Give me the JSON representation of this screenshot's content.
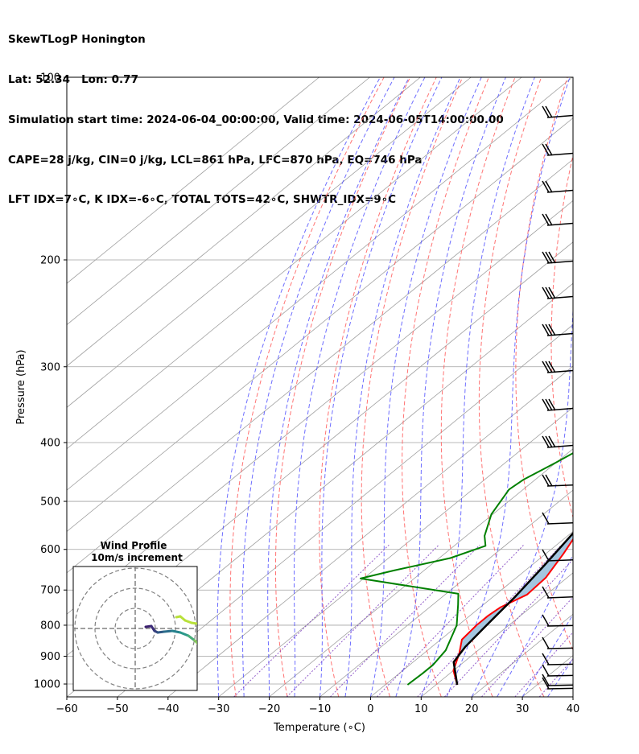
{
  "header": {
    "line1": "SkewTLogP Honington",
    "line2": "Lat: 52.34   Lon: 0.77",
    "line3": "Simulation start time: 2024-06-04_00:00:00, Valid time: 2024-06-05T14:00:00.00",
    "line4": "CAPE=28 j/kg, CIN=0 j/kg, LCL=861 hPa, LFC=870 hPa, EQ=746 hPa",
    "line5": "LFT IDX=7∘C, K IDX=-6∘C, TOTAL TOTS=42∘C, SHWTR_IDX=9∘C"
  },
  "chart_data": {
    "type": "line",
    "xlabel": "Temperature (∘C)",
    "ylabel": "Pressure (hPa)",
    "xlim": [
      -60,
      40
    ],
    "ylim": [
      1050,
      100
    ],
    "y_scale": "log",
    "x_ticks": [
      "−60",
      "−50",
      "−40",
      "−30",
      "−20",
      "−10",
      "0",
      "10",
      "20",
      "30",
      "40"
    ],
    "y_ticks": [
      100,
      200,
      300,
      400,
      500,
      600,
      700,
      800,
      900,
      1000
    ],
    "grid": true,
    "colors": {
      "temperature": "#ff0000",
      "dewpoint": "#008000",
      "parcel": "#000000",
      "cape_fill": "#a3c6e0",
      "dry_adiabats": "#ff5a5a",
      "moist_adiabats": "#4a4aff",
      "mixing_ratio": "#7f3fbf",
      "isotherms": "#a0a0a0"
    },
    "series": [
      {
        "key": "temperature",
        "points": [
          [
            14.2,
            1003
          ],
          [
            10,
            950
          ],
          [
            7,
            890
          ],
          [
            4.2,
            845
          ],
          [
            3.6,
            800
          ],
          [
            3.6,
            772
          ],
          [
            4,
            748
          ],
          [
            6.2,
            712
          ],
          [
            5.8,
            668
          ],
          [
            3.5,
            610
          ],
          [
            1,
            560
          ],
          [
            -2.1,
            510
          ],
          [
            -3.2,
            470
          ],
          [
            -4.6,
            420
          ],
          [
            -6.2,
            380
          ],
          [
            -7.2,
            350
          ],
          [
            -7.8,
            310
          ],
          [
            -7.4,
            285
          ],
          [
            -5.6,
            265
          ],
          [
            -2.2,
            240
          ],
          [
            0.6,
            220
          ],
          [
            2.8,
            200
          ],
          [
            4.5,
            185
          ],
          [
            6.8,
            165
          ],
          [
            8.8,
            145
          ],
          [
            10.4,
            130
          ],
          [
            12.1,
            115
          ],
          [
            12.8,
            107
          ],
          [
            13.6,
            100
          ]
        ]
      },
      {
        "key": "dewpoint",
        "points": [
          [
            4.4,
            1003
          ],
          [
            4.6,
            960
          ],
          [
            4.6,
            930
          ],
          [
            3.6,
            880
          ],
          [
            -0.3,
            800
          ],
          [
            -5,
            740
          ],
          [
            -7.6,
            710
          ],
          [
            -30.6,
            670
          ],
          [
            -26,
            650
          ],
          [
            -17.8,
            620
          ],
          [
            -13.8,
            592
          ],
          [
            -16.4,
            570
          ],
          [
            -20.3,
            525
          ],
          [
            -22.8,
            478
          ],
          [
            -22.3,
            460
          ],
          [
            -20.1,
            432
          ],
          [
            -18,
            404
          ],
          [
            -16.4,
            370
          ],
          [
            -16.1,
            340
          ],
          [
            -16.2,
            310
          ],
          [
            -15.5,
            285
          ],
          [
            -15.6,
            267
          ],
          [
            -16.2,
            245
          ],
          [
            -16.3,
            228
          ],
          [
            -16.7,
            205
          ],
          [
            -17.4,
            197
          ],
          [
            -18.3,
            187
          ],
          [
            -11.5,
            150
          ],
          [
            -0.3,
            100
          ]
        ]
      },
      {
        "key": "parcel",
        "points": [
          [
            14.2,
            1003
          ],
          [
            8,
            920
          ],
          [
            6.6,
            868
          ],
          [
            5.6,
            800
          ],
          [
            4.4,
            720
          ],
          [
            2.6,
            640
          ],
          [
            0.3,
            560
          ],
          [
            -3.5,
            480
          ],
          [
            -7.6,
            420
          ],
          [
            -12.3,
            360
          ],
          [
            -17.9,
            300
          ],
          [
            -24.8,
            245
          ],
          [
            -32.1,
            200
          ],
          [
            -39.2,
            165
          ],
          [
            -47.5,
            135
          ],
          [
            -56.7,
            110
          ],
          [
            -60,
            102
          ]
        ]
      }
    ],
    "inset": {
      "title": "Wind Profile",
      "subtitle": "10m/s increment"
    }
  }
}
